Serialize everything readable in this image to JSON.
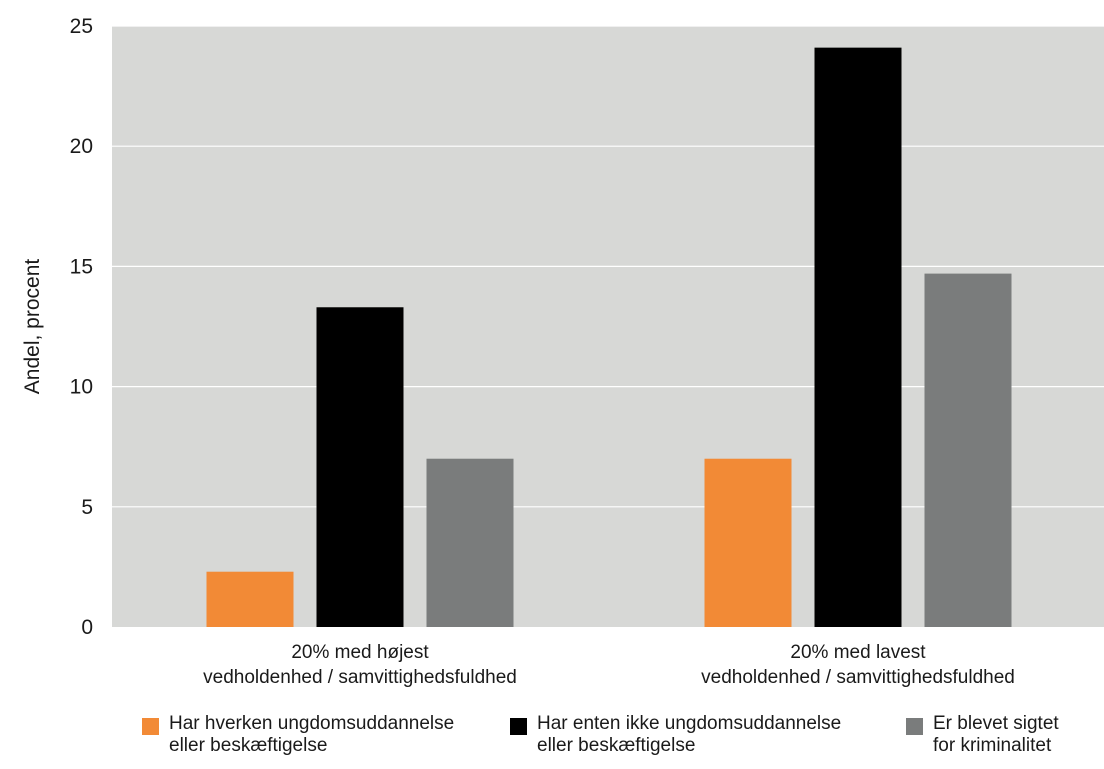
{
  "chart_data": {
    "type": "bar",
    "ylabel": "Andel, procent",
    "ylim": [
      0,
      25
    ],
    "yticks": [
      "0",
      "5",
      "10",
      "15",
      "20",
      "25"
    ],
    "categories": [
      {
        "line1": "20% med højest",
        "line2": "vedholdenhed / samvittighedsfuldhed"
      },
      {
        "line1": "20% med lavest",
        "line2": "vedholdenhed / samvittighedsfuldhed"
      }
    ],
    "series": [
      {
        "name_line1": "Har hverken ungdomsuddannelse",
        "name_line2": "eller beskæftigelse",
        "color": "#f28a36",
        "values": [
          2.3,
          7.0
        ]
      },
      {
        "name_line1": "Har enten ikke ungdomsuddannelse",
        "name_line2": "eller beskæftigelse",
        "color": "#000000",
        "values": [
          13.3,
          24.1
        ]
      },
      {
        "name_line1": "Er blevet sigtet",
        "name_line2": "for kriminalitet",
        "color": "#7a7c7c",
        "values": [
          7.0,
          14.7
        ]
      }
    ],
    "grid": true,
    "plot_background": "#d7d8d6",
    "legend_position": "bottom"
  }
}
